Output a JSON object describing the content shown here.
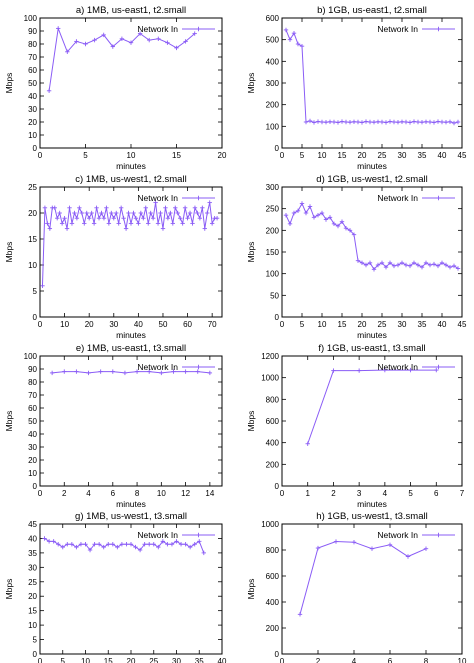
{
  "series_color": "#8a5cf6",
  "marker": "plus",
  "chart_data": [
    {
      "type": "line",
      "title": "a) 1MB, us-east1, t2.small",
      "xlabel": "minutes",
      "ylabel": "Mbps",
      "xlim": [
        0,
        20
      ],
      "ylim": [
        0,
        100
      ],
      "xticks": [
        0,
        5,
        10,
        15,
        20
      ],
      "yticks": [
        0,
        10,
        20,
        30,
        40,
        50,
        60,
        70,
        80,
        90,
        100
      ],
      "legend_position": "top-right",
      "series": [
        {
          "name": "Network In",
          "x": [
            1,
            2,
            3,
            4,
            5,
            6,
            7,
            8,
            9,
            10,
            11,
            12,
            13,
            14,
            15,
            16,
            17
          ],
          "y": [
            44,
            92,
            74,
            82,
            80,
            83,
            87,
            78,
            84,
            81,
            88,
            83,
            84,
            81,
            77,
            82,
            88
          ]
        }
      ]
    },
    {
      "type": "line",
      "title": "b) 1GB, us-east1, t2.small",
      "xlabel": "minutes",
      "ylabel": "Mbps",
      "xlim": [
        0,
        45
      ],
      "ylim": [
        0,
        600
      ],
      "xticks": [
        0,
        5,
        10,
        15,
        20,
        25,
        30,
        35,
        40,
        45
      ],
      "yticks": [
        0,
        100,
        200,
        300,
        400,
        500,
        600
      ],
      "legend_position": "top-right",
      "series": [
        {
          "name": "Network In",
          "x": [
            1,
            2,
            3,
            4,
            5,
            6,
            7,
            8,
            9,
            10,
            11,
            12,
            13,
            14,
            15,
            16,
            17,
            18,
            19,
            20,
            21,
            22,
            23,
            24,
            25,
            26,
            27,
            28,
            29,
            30,
            31,
            32,
            33,
            34,
            35,
            36,
            37,
            38,
            39,
            40,
            41,
            42,
            43,
            44
          ],
          "y": [
            545,
            500,
            530,
            480,
            470,
            120,
            125,
            118,
            122,
            120,
            119,
            121,
            120,
            118,
            122,
            120,
            119,
            121,
            120,
            118,
            122,
            120,
            119,
            121,
            120,
            118,
            122,
            120,
            119,
            121,
            120,
            118,
            122,
            120,
            119,
            121,
            120,
            118,
            122,
            120,
            119,
            121,
            115,
            120
          ]
        }
      ]
    },
    {
      "type": "line",
      "title": "c) 1MB, us-west1, t2.small",
      "xlabel": "minutes",
      "ylabel": "Mbps",
      "xlim": [
        0,
        74
      ],
      "ylim": [
        0,
        25
      ],
      "xticks": [
        0,
        10,
        20,
        30,
        40,
        50,
        60,
        70
      ],
      "yticks": [
        0,
        5,
        10,
        15,
        20,
        25
      ],
      "legend_position": "top-right",
      "series": [
        {
          "name": "Network In",
          "x": [
            1,
            2,
            3,
            4,
            5,
            6,
            7,
            8,
            9,
            10,
            11,
            12,
            13,
            14,
            15,
            16,
            17,
            18,
            19,
            20,
            21,
            22,
            23,
            24,
            25,
            26,
            27,
            28,
            29,
            30,
            31,
            32,
            33,
            34,
            35,
            36,
            37,
            38,
            39,
            40,
            41,
            42,
            43,
            44,
            45,
            46,
            47,
            48,
            49,
            50,
            51,
            52,
            53,
            54,
            55,
            56,
            57,
            58,
            59,
            60,
            61,
            62,
            63,
            64,
            65,
            66,
            67,
            68,
            69,
            70,
            71,
            72
          ],
          "y": [
            6,
            21,
            18,
            17,
            21,
            21,
            19,
            20,
            18,
            19,
            17,
            21,
            18,
            20,
            19,
            21,
            20,
            18,
            20,
            19,
            20,
            18,
            21,
            19,
            20,
            19,
            21,
            18,
            20,
            19,
            20,
            18,
            21,
            19,
            17,
            20,
            18,
            20,
            19,
            18,
            20,
            19,
            21,
            18,
            20,
            19,
            22,
            18,
            20,
            17,
            21,
            19,
            20,
            18,
            21,
            20,
            19,
            18,
            21,
            19,
            20,
            18,
            21,
            20,
            19,
            21,
            17,
            20,
            22,
            18,
            19,
            19
          ]
        }
      ]
    },
    {
      "type": "line",
      "title": "d) 1GB, us-west1, t2.small",
      "xlabel": "minutes",
      "ylabel": "Mbps",
      "xlim": [
        0,
        45
      ],
      "ylim": [
        0,
        300
      ],
      "xticks": [
        0,
        5,
        10,
        15,
        20,
        25,
        30,
        35,
        40,
        45
      ],
      "yticks": [
        0,
        50,
        100,
        150,
        200,
        250,
        300
      ],
      "legend_position": "top-right",
      "series": [
        {
          "name": "Network In",
          "x": [
            1,
            2,
            3,
            4,
            5,
            6,
            7,
            8,
            9,
            10,
            11,
            12,
            13,
            14,
            15,
            16,
            17,
            18,
            19,
            20,
            21,
            22,
            23,
            24,
            25,
            26,
            27,
            28,
            29,
            30,
            31,
            32,
            33,
            34,
            35,
            36,
            37,
            38,
            39,
            40,
            41,
            42,
            43,
            44
          ],
          "y": [
            235,
            215,
            240,
            245,
            262,
            240,
            255,
            230,
            235,
            240,
            225,
            230,
            215,
            210,
            220,
            205,
            200,
            190,
            130,
            125,
            120,
            125,
            110,
            120,
            125,
            115,
            125,
            118,
            120,
            125,
            120,
            118,
            125,
            120,
            115,
            125,
            120,
            122,
            118,
            125,
            120,
            115,
            118,
            112
          ]
        }
      ]
    },
    {
      "type": "line",
      "title": "e) 1MB, us-east1, t3.small",
      "xlabel": "minutes",
      "ylabel": "Mbps",
      "xlim": [
        0,
        15
      ],
      "ylim": [
        0,
        100
      ],
      "xticks": [
        0,
        2,
        4,
        6,
        8,
        10,
        12,
        14
      ],
      "yticks": [
        0,
        10,
        20,
        30,
        40,
        50,
        60,
        70,
        80,
        90,
        100
      ],
      "legend_position": "top-right",
      "series": [
        {
          "name": "Network In",
          "x": [
            1,
            2,
            3,
            4,
            5,
            6,
            7,
            8,
            9,
            10,
            11,
            12,
            13,
            14
          ],
          "y": [
            87,
            88,
            88,
            87,
            88,
            88,
            87,
            88,
            88,
            87,
            88,
            88,
            88,
            87
          ]
        }
      ]
    },
    {
      "type": "line",
      "title": "f) 1GB, us-east1, t3.small",
      "xlabel": "minutes",
      "ylabel": "Mbps",
      "xlim": [
        0,
        7
      ],
      "ylim": [
        0,
        1200
      ],
      "xticks": [
        0,
        1,
        2,
        3,
        4,
        5,
        6,
        7
      ],
      "yticks": [
        0,
        200,
        400,
        600,
        800,
        1000,
        1200
      ],
      "legend_position": "top-right",
      "series": [
        {
          "name": "Network In",
          "x": [
            1,
            2,
            3,
            4,
            5,
            6
          ],
          "y": [
            390,
            1065,
            1065,
            1070,
            1070,
            1070
          ]
        }
      ]
    },
    {
      "type": "line",
      "title": "g) 1MB, us-west1, t3.small",
      "xlabel": "minutes",
      "ylabel": "Mbps",
      "xlim": [
        0,
        40
      ],
      "ylim": [
        0,
        45
      ],
      "xticks": [
        0,
        5,
        10,
        15,
        20,
        25,
        30,
        35,
        40
      ],
      "yticks": [
        0,
        5,
        10,
        15,
        20,
        25,
        30,
        35,
        40,
        45
      ],
      "legend_position": "top-right",
      "series": [
        {
          "name": "Network In",
          "x": [
            1,
            2,
            3,
            4,
            5,
            6,
            7,
            8,
            9,
            10,
            11,
            12,
            13,
            14,
            15,
            16,
            17,
            18,
            19,
            20,
            21,
            22,
            23,
            24,
            25,
            26,
            27,
            28,
            29,
            30,
            31,
            32,
            33,
            34,
            35,
            36
          ],
          "y": [
            40,
            39,
            39,
            38,
            37,
            38,
            38,
            37,
            38,
            38,
            36,
            38,
            38,
            37,
            38,
            38,
            37,
            38,
            38,
            38,
            37,
            36,
            38,
            38,
            38,
            37,
            39,
            38,
            38,
            39,
            38,
            38,
            37,
            38,
            39,
            35
          ]
        }
      ]
    },
    {
      "type": "line",
      "title": "h) 1GB, us-west1, t3.small",
      "xlabel": "minutes",
      "ylabel": "Mbps",
      "xlim": [
        0,
        10
      ],
      "ylim": [
        0,
        1000
      ],
      "xticks": [
        0,
        2,
        4,
        6,
        8,
        10
      ],
      "yticks": [
        0,
        200,
        400,
        600,
        800,
        1000
      ],
      "legend_position": "top-right",
      "series": [
        {
          "name": "Network In",
          "x": [
            1,
            2,
            3,
            4,
            5,
            6,
            7,
            8
          ],
          "y": [
            305,
            815,
            865,
            860,
            810,
            840,
            750,
            810
          ]
        }
      ]
    }
  ]
}
